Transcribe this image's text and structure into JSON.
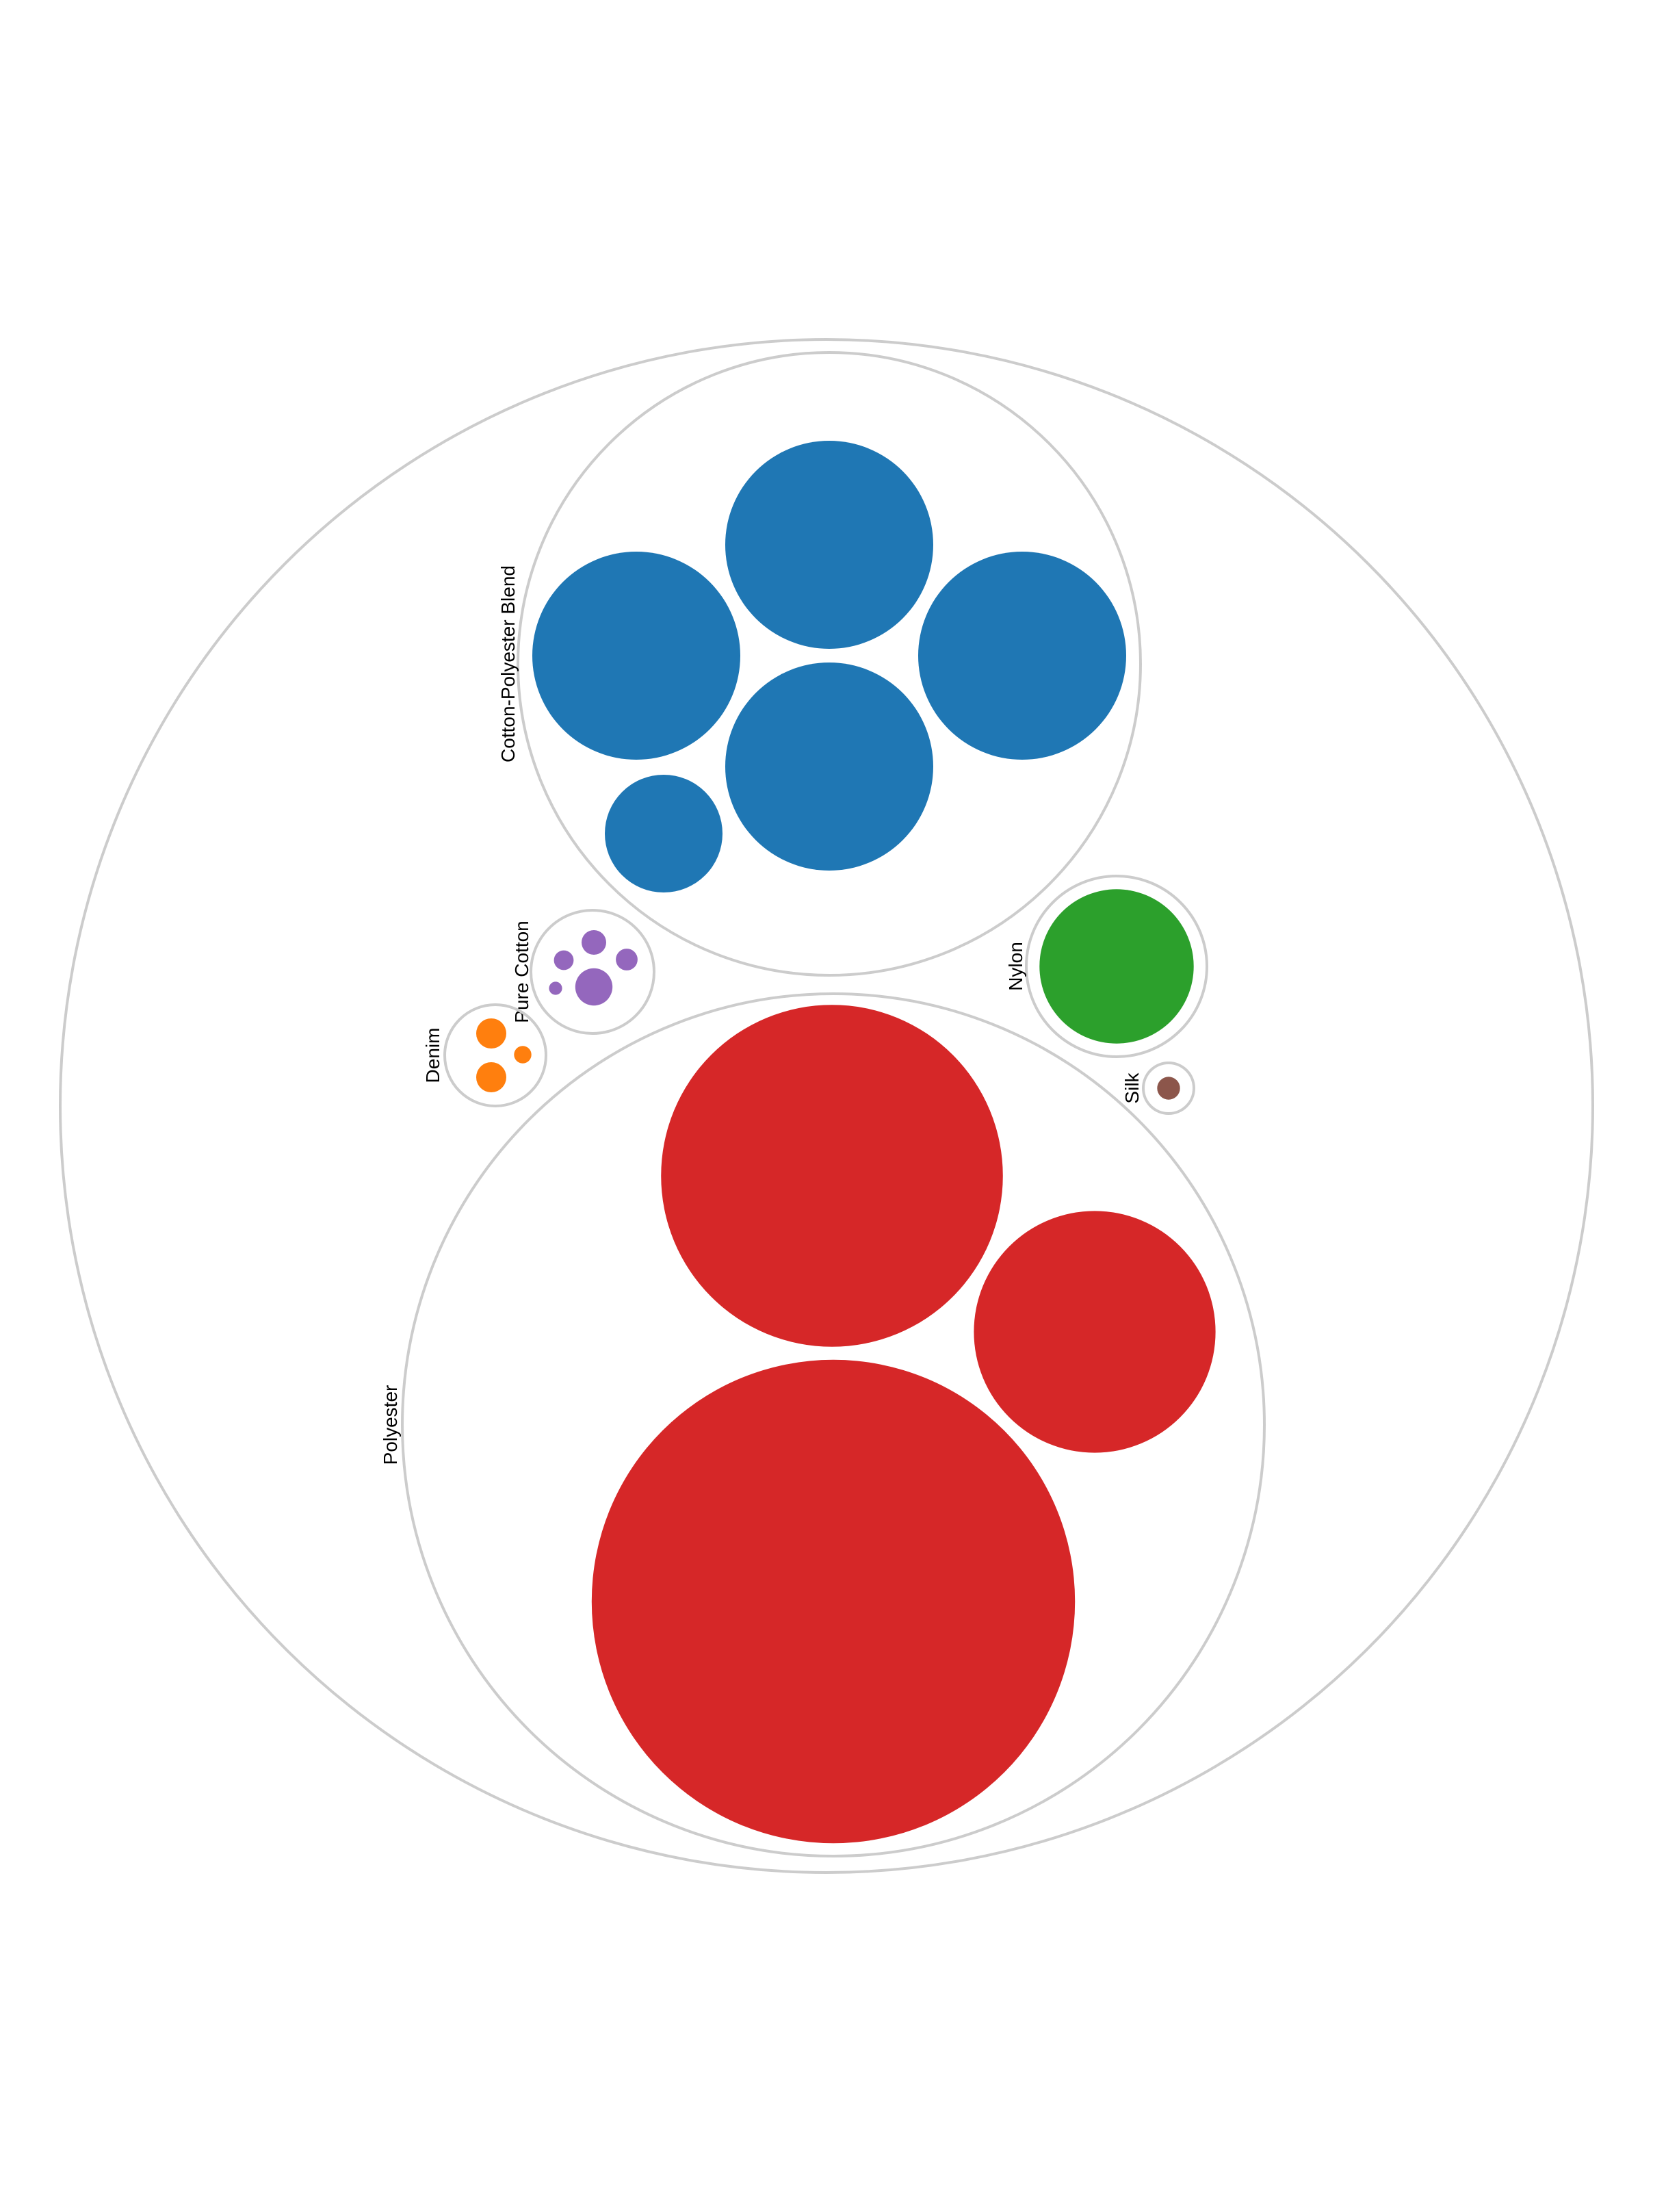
{
  "chart_data": {
    "type": "circle-packing",
    "title": "",
    "groups": [
      {
        "name": "Cotton-Polyester Blend",
        "color": "#1f77b4",
        "values": [
          100,
          100,
          100,
          100,
          32
        ]
      },
      {
        "name": "Pure Cotton",
        "color": "#9467bd",
        "values": [
          3.2,
          1.4,
          1.1,
          0.9,
          0.4
        ]
      },
      {
        "name": "Denim",
        "color": "#ff7f0e",
        "values": [
          2.1,
          2.1,
          0.7
        ]
      },
      {
        "name": "Nylon",
        "color": "#2ca02c",
        "values": [
          55
        ]
      },
      {
        "name": "Silk",
        "color": "#8c564b",
        "values": [
          1.2
        ]
      },
      {
        "name": "Polyester",
        "color": "#d62728",
        "values": [
          540,
          270,
          135
        ]
      }
    ],
    "legend": "none",
    "grid": false
  }
}
